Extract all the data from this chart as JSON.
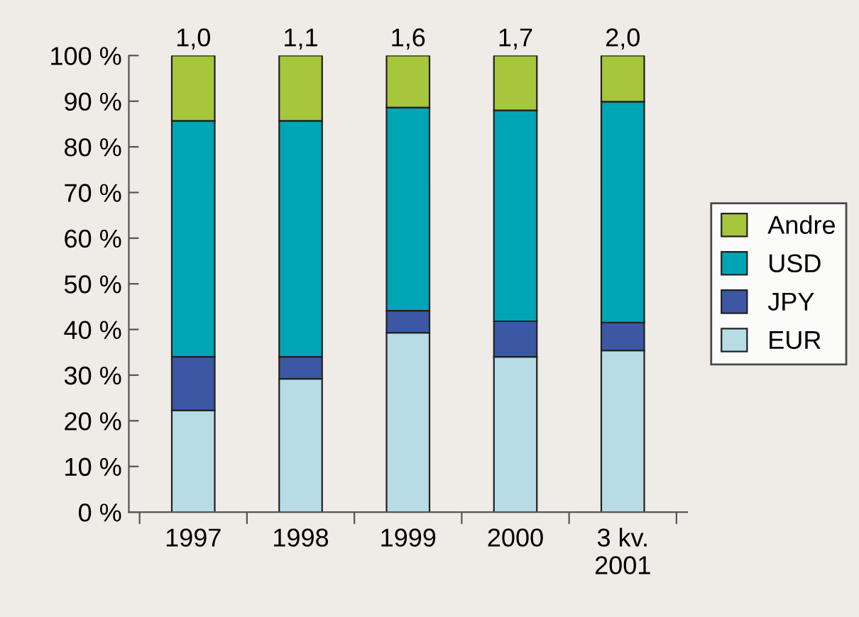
{
  "chart_data": {
    "type": "bar",
    "stacked": true,
    "categories": [
      "1997",
      "1998",
      "1999",
      "2000",
      "3 kv.\n2001"
    ],
    "series": [
      {
        "name": "EUR",
        "color": "#b8dce6",
        "values": [
          22.3,
          29.2,
          39.3,
          34.0,
          35.4
        ]
      },
      {
        "name": "JPY",
        "color": "#3c58a4",
        "values": [
          11.7,
          4.8,
          4.8,
          7.8,
          6.1
        ]
      },
      {
        "name": "USD",
        "color": "#00a5b5",
        "values": [
          51.7,
          51.7,
          44.5,
          46.2,
          48.4
        ]
      },
      {
        "name": "Andre",
        "color": "#a6c63c",
        "values": [
          14.3,
          14.3,
          11.4,
          12.0,
          10.1
        ]
      }
    ],
    "annotations": [
      {
        "text": "1,0",
        "x": "1997",
        "y": 100
      },
      {
        "text": "1,1",
        "x": "1998",
        "y": 100
      },
      {
        "text": "1,6",
        "x": "1999",
        "y": 100
      },
      {
        "text": "1,7",
        "x": "2000",
        "y": 100
      },
      {
        "text": "2,0",
        "x": "3 kv.\n2001",
        "y": 100
      }
    ],
    "ylim": [
      0,
      100
    ],
    "yticks": [
      {
        "value": 0,
        "label": "0 %"
      },
      {
        "value": 10,
        "label": "10 %"
      },
      {
        "value": 20,
        "label": "20 %"
      },
      {
        "value": 30,
        "label": "30 %"
      },
      {
        "value": 40,
        "label": "40 %"
      },
      {
        "value": 50,
        "label": "50 %"
      },
      {
        "value": 60,
        "label": "60 %"
      },
      {
        "value": 70,
        "label": "70 %"
      },
      {
        "value": 80,
        "label": "80 %"
      },
      {
        "value": 90,
        "label": "90 %"
      },
      {
        "value": 100,
        "label": "100 %"
      }
    ],
    "grid": false,
    "legend": "right"
  }
}
